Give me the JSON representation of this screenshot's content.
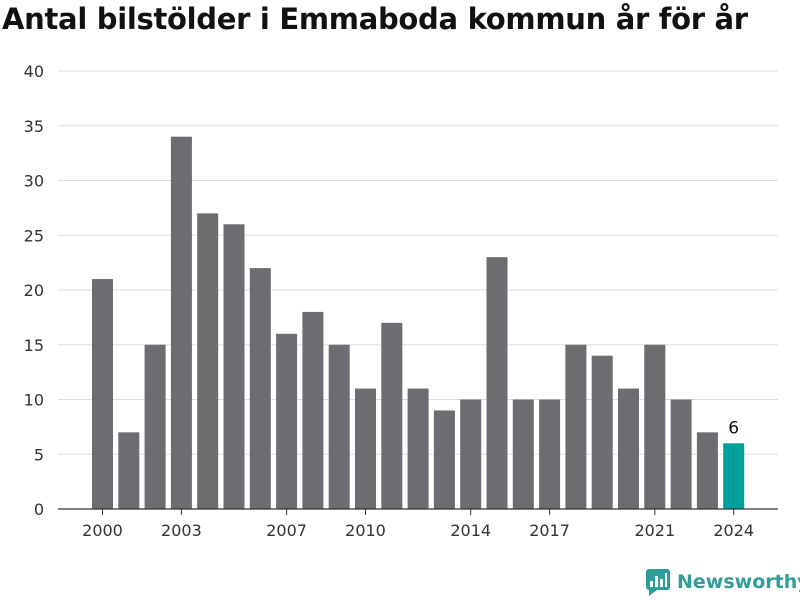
{
  "title": "Antal bilstölder i Emmaboda kommun år för år",
  "brand": {
    "name": "Newsworthy",
    "color": "#2f9e9a",
    "icon": "chart-logo-icon"
  },
  "colors": {
    "bar": "#6d6c70",
    "highlight": "#00a19a",
    "grid": "#dddddd",
    "tick": "#333333"
  },
  "chart_data": {
    "type": "bar",
    "categories": [
      2000,
      2001,
      2002,
      2003,
      2004,
      2005,
      2006,
      2007,
      2008,
      2009,
      2010,
      2011,
      2012,
      2013,
      2014,
      2015,
      2016,
      2017,
      2018,
      2019,
      2020,
      2021,
      2022,
      2023,
      2024
    ],
    "values": [
      21,
      7,
      15,
      34,
      27,
      26,
      22,
      16,
      18,
      15,
      11,
      17,
      11,
      9,
      10,
      23,
      10,
      10,
      15,
      14,
      11,
      15,
      10,
      7,
      6
    ],
    "highlight_index": 24,
    "highlight_label": "6",
    "x_tick_labels": [
      "2000",
      "2003",
      "2007",
      "2010",
      "2014",
      "2017",
      "2021",
      "2024"
    ],
    "yticks": [
      0,
      5,
      10,
      15,
      20,
      25,
      30,
      35,
      40
    ],
    "ylim": [
      0,
      40
    ],
    "grid": true,
    "xlabel": "",
    "ylabel": ""
  }
}
